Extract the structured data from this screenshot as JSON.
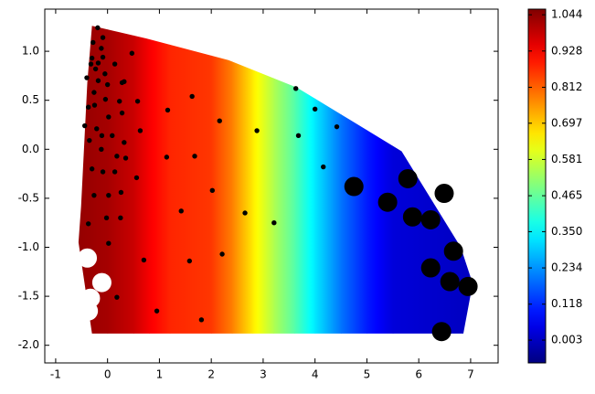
{
  "chart_data": {
    "type": "contour-scatter",
    "xlim": [
      -1.21,
      7.53
    ],
    "ylim": [
      -2.18,
      1.43
    ],
    "xticks": [
      -1,
      0,
      1,
      2,
      3,
      4,
      5,
      6,
      7
    ],
    "yticks": [
      {
        "value": 1,
        "label": "1.0"
      },
      0.5,
      {
        "value": 0,
        "label": "0.0"
      },
      -0.5,
      {
        "value": -1,
        "label": "-1.0"
      },
      -1.5,
      {
        "value": -2,
        "label": "-2.0"
      }
    ],
    "colormap": "jet",
    "colorbar": {
      "lim": [
        -0.07,
        1.062
      ],
      "ticks": [
        0.003,
        0.118,
        0.234,
        {
          "value": 0.35,
          "label": "0.350"
        },
        0.465,
        0.581,
        0.697,
        0.812,
        0.928,
        1.044
      ]
    },
    "field": {
      "x": [
        -0.6,
        0,
        0.5,
        0.8,
        1.2,
        2.0,
        2.4,
        2.8,
        3.2,
        3.6,
        4.0,
        4.5,
        5.0,
        5.5,
        7.1
      ],
      "values": [
        1.04,
        1.02,
        0.98,
        0.93,
        0.88,
        0.86,
        0.78,
        0.66,
        0.55,
        0.45,
        0.33,
        0.2,
        0.1,
        0.03,
        0.0
      ]
    },
    "region": {
      "x": [
        -0.3,
        0.75,
        2.33,
        3.65,
        5.67,
        6.81,
        7.04,
        6.86,
        -0.3,
        -0.56,
        -0.51,
        -0.39
      ],
      "y": [
        1.26,
        1.13,
        0.91,
        0.63,
        -0.02,
        -1.0,
        -1.37,
        -1.88,
        -1.88,
        -0.95,
        -0.58,
        0.68
      ]
    },
    "series": [
      {
        "color": "#000000",
        "x": [
          -0.19,
          -0.28,
          -0.09,
          -0.12,
          -0.3,
          -0.18,
          -0.09,
          -0.23,
          -0.32,
          -0.05,
          -0.4,
          -0.18,
          0.0,
          -0.26,
          -0.04,
          0.28,
          0.14,
          0.47,
          0.32,
          -0.37,
          -0.25,
          0.23,
          0.58,
          0.02,
          -0.44,
          -0.21,
          0.28,
          0.63,
          -0.11,
          -0.35,
          0.09,
          -0.12,
          0.32,
          0.18,
          0.35,
          -0.3,
          -0.09,
          0.14,
          0.56,
          -0.26,
          0.02,
          0.26,
          -0.02,
          0.25,
          -0.37,
          0.02,
          0.18,
          0.7,
          0.95,
          1.81,
          1.58,
          1.63,
          1.16,
          1.14,
          1.68,
          2.02,
          1.42,
          2.16,
          2.65,
          2.88,
          3.21,
          2.21,
          3.63,
          3.68,
          4.0,
          4.16,
          4.42
        ],
        "y": [
          1.24,
          1.09,
          1.14,
          1.03,
          0.93,
          0.88,
          0.94,
          0.82,
          0.87,
          0.77,
          0.73,
          0.7,
          0.66,
          0.58,
          0.51,
          0.68,
          0.87,
          0.98,
          0.69,
          0.43,
          0.45,
          0.49,
          0.49,
          0.33,
          0.24,
          0.21,
          0.37,
          0.19,
          0.14,
          0.09,
          0.14,
          0.0,
          0.07,
          -0.07,
          -0.09,
          -0.2,
          -0.23,
          -0.23,
          -0.29,
          -0.47,
          -0.47,
          -0.44,
          -0.7,
          -0.7,
          -0.76,
          -0.96,
          -1.51,
          -1.13,
          -1.65,
          -1.74,
          -1.14,
          0.54,
          0.4,
          -0.08,
          -0.07,
          -0.42,
          -0.63,
          0.29,
          -0.65,
          0.19,
          -0.75,
          -1.07,
          0.62,
          0.14,
          0.41,
          -0.18,
          0.23
        ]
      },
      {
        "color": "#000000",
        "x": [
          4.75,
          5.4,
          5.79,
          5.88,
          6.23,
          6.49,
          6.67,
          6.23,
          6.6,
          6.95,
          6.44
        ],
        "y": [
          -0.38,
          -0.54,
          -0.3,
          -0.69,
          -0.72,
          -0.45,
          -1.04,
          -1.21,
          -1.35,
          -1.4,
          -1.86
        ]
      },
      {
        "color": "#ffffff",
        "x": [
          -0.39,
          -0.11,
          -0.33,
          -0.37
        ],
        "y": [
          -1.11,
          -1.36,
          -1.52,
          -1.65
        ]
      }
    ]
  }
}
